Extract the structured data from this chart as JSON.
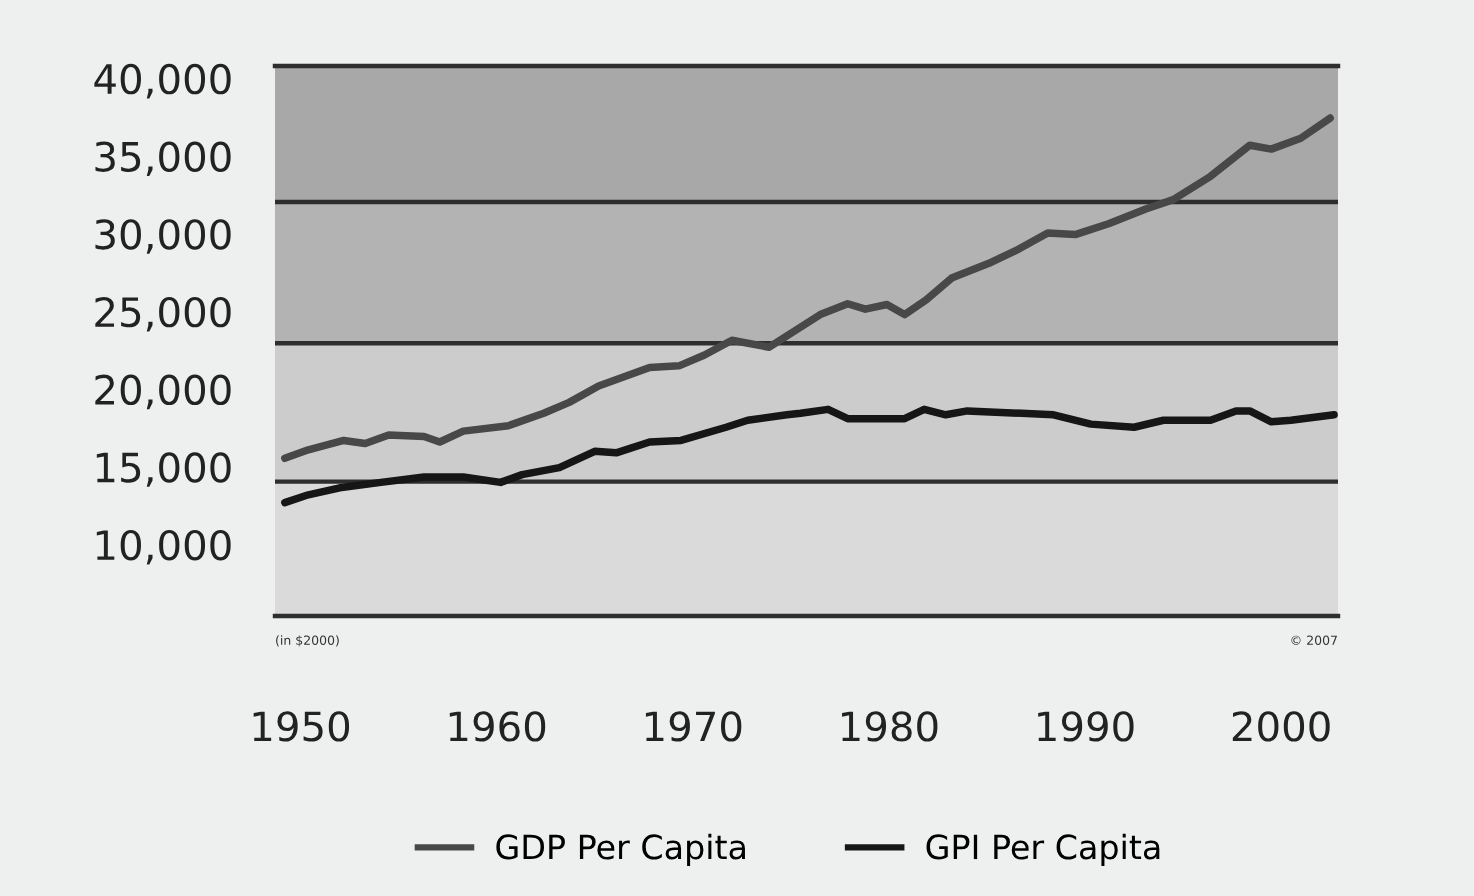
{
  "chart_data": {
    "type": "line",
    "xlim": [
      1948.7,
      2002.9
    ],
    "ylim": [
      5400,
      40800
    ],
    "xticks": [
      1950,
      1960,
      1970,
      1980,
      1990,
      2000
    ],
    "yticks": [
      {
        "value": 10000,
        "label": "10,000"
      },
      {
        "value": 15000,
        "label": "15,000"
      },
      {
        "value": 20000,
        "label": "20,000"
      },
      {
        "value": 25000,
        "label": "25,000"
      },
      {
        "value": 30000,
        "label": "30,000"
      },
      {
        "value": 35000,
        "label": "35,000"
      },
      {
        "value": 40000,
        "label": "40,000"
      }
    ],
    "bands": [
      {
        "axis": "y",
        "from": 5400,
        "to": 14050,
        "color": "#d9dad9"
      },
      {
        "axis": "y",
        "from": 14050,
        "to": 22950,
        "color": "#cbcccb"
      },
      {
        "axis": "y",
        "from": 22950,
        "to": 32050,
        "color": "#b2b3b2"
      },
      {
        "axis": "y",
        "from": 32050,
        "to": 40800,
        "color": "#a7a8a7"
      }
    ],
    "series": [
      {
        "name": "GDP Per Capita",
        "color": "#484848",
        "x": [
          1949.2,
          1950.4,
          1952.2,
          1953.3,
          1954.5,
          1956.3,
          1957.1,
          1958.3,
          1960.6,
          1962.4,
          1963.7,
          1965.2,
          1966.5,
          1967.8,
          1969.3,
          1970.6,
          1972.0,
          1973.9,
          1976.5,
          1977.9,
          1978.8,
          1979.9,
          1980.8,
          1981.9,
          1983.2,
          1985.1,
          1986.6,
          1988.1,
          1989.5,
          1991.2,
          1993.1,
          1994.5,
          1996.4,
          1998.4,
          1999.5,
          2001.0,
          2002.5
        ],
        "values": [
          15550,
          16100,
          16700,
          16500,
          17050,
          16950,
          16600,
          17300,
          17650,
          18450,
          19150,
          20200,
          20800,
          21400,
          21500,
          22200,
          23150,
          22700,
          24800,
          25500,
          25150,
          25450,
          24800,
          25750,
          27150,
          28100,
          29000,
          30050,
          29950,
          30650,
          31600,
          32200,
          33700,
          35700,
          35450,
          36150,
          37450
        ]
      },
      {
        "name": "GPI Per Capita",
        "color": "#161616",
        "x": [
          1949.2,
          1950.4,
          1952.0,
          1954.1,
          1956.3,
          1958.3,
          1960.2,
          1961.3,
          1963.2,
          1965.0,
          1966.1,
          1967.8,
          1969.4,
          1971.7,
          1972.8,
          1974.8,
          1975.5,
          1976.9,
          1977.9,
          1980.8,
          1981.8,
          1982.9,
          1984.0,
          1988.4,
          1990.3,
          1992.5,
          1994.0,
          1996.4,
          1997.7,
          1998.4,
          1999.5,
          2000.5,
          2002.7
        ],
        "values": [
          12700,
          13200,
          13650,
          14000,
          14350,
          14350,
          14000,
          14500,
          14950,
          16000,
          15900,
          16600,
          16700,
          17550,
          18000,
          18350,
          18450,
          18700,
          18100,
          18100,
          18700,
          18350,
          18600,
          18350,
          17750,
          17550,
          18000,
          18000,
          18600,
          18600,
          17900,
          18000,
          18350
        ]
      }
    ],
    "annotations": [
      "(in $2000)",
      "© 2007"
    ],
    "legend": "bottom"
  }
}
